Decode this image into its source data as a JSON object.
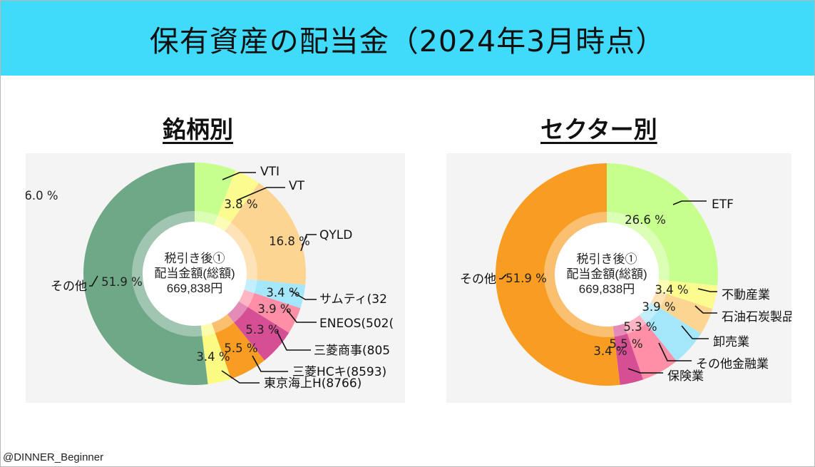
{
  "title": "保有資産の配当金（2024年3月時点）",
  "credit": "@DINNER_Beginner",
  "chart_data": [
    {
      "type": "pie",
      "heading": "銘柄別",
      "center": [
        "税引き後①",
        "配当金額(総額)",
        "669,838円"
      ],
      "start": "top",
      "direction": "clockwise",
      "slices": [
        {
          "label": "VTI",
          "value": 6.0,
          "display": "6.0 %",
          "color": "#c6ff8e"
        },
        {
          "label": "VT",
          "value": 3.8,
          "display": "3.8 %",
          "color": "#fbfb90"
        },
        {
          "label": "QYLD",
          "value": 16.8,
          "display": "16.8 %",
          "color": "#fdd592"
        },
        {
          "label": "サムティ(32",
          "value": 3.4,
          "display": "3.4 %",
          "color": "#a4e7fb"
        },
        {
          "label": "ENEOS(502(",
          "value": 3.9,
          "display": "3.9 %",
          "color": "#fe8fa6"
        },
        {
          "label": "三菱商事(805",
          "value": 5.3,
          "display": "5.3 %",
          "color": "#d64e93"
        },
        {
          "label": "三菱HCキ(8593)",
          "value": 5.5,
          "display": "5.5 %",
          "color": "#f89d22"
        },
        {
          "label": "東京海上H(8766)",
          "value": 3.4,
          "display": "3.4 %",
          "color": "#fbfb84"
        },
        {
          "label": "その他",
          "value": 51.9,
          "display": "51.9 %",
          "color": "#6ea887"
        }
      ]
    },
    {
      "type": "pie",
      "heading": "セクター別",
      "center": [
        "税引き後①",
        "配当金額(総額)",
        "669,838円"
      ],
      "start": "top",
      "direction": "clockwise",
      "slices": [
        {
          "label": "ETF",
          "value": 26.6,
          "display": "26.6 %",
          "color": "#c6ff8e"
        },
        {
          "label": "不動産業",
          "value": 3.4,
          "display": "3.4 %",
          "color": "#fbfb90"
        },
        {
          "label": "石油石炭製品",
          "value": 3.9,
          "display": "3.9 %",
          "color": "#fdd592"
        },
        {
          "label": "卸売業",
          "value": 5.3,
          "display": "5.3 %",
          "color": "#a4e7fb"
        },
        {
          "label": "その他金融業",
          "value": 5.5,
          "display": "5.5 %",
          "color": "#fe8fa6"
        },
        {
          "label": "保険業",
          "value": 3.4,
          "display": "3.4 %",
          "color": "#d64e93"
        },
        {
          "label": "その他",
          "value": 51.9,
          "display": "51.9 %",
          "color": "#f89d22"
        }
      ]
    }
  ]
}
